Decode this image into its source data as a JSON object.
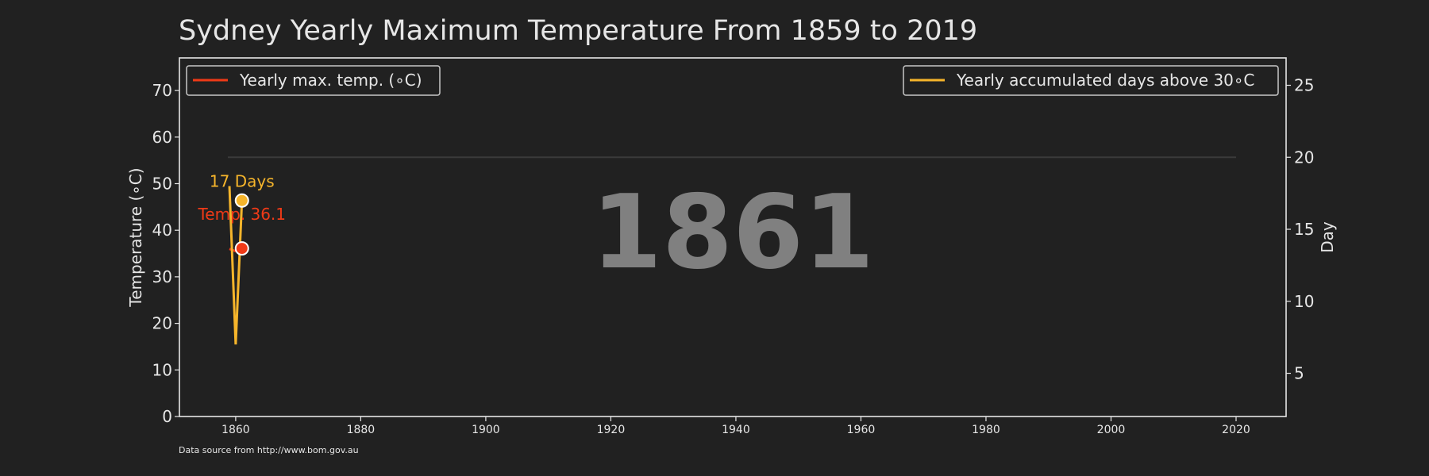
{
  "chart_data": {
    "type": "line",
    "title": "Sydney Yearly Maximum Temperature From 1859 to 2019",
    "source_note": "Data source from http://www.bom.gov.au",
    "big_year": "1861",
    "x": {
      "ticks": [
        1860,
        1880,
        1900,
        1920,
        1940,
        1960,
        1980,
        2000,
        2020
      ],
      "lim": [
        1851,
        2028
      ]
    },
    "y_left": {
      "label": "Temperature (∘C)",
      "ticks": [
        0,
        10,
        20,
        30,
        40,
        50,
        60,
        70
      ],
      "lim": [
        0,
        77
      ]
    },
    "y_right": {
      "label": "Day",
      "ticks": [
        5,
        10,
        15,
        20,
        25
      ],
      "lim": [
        2,
        26.9
      ]
    },
    "series": [
      {
        "name": "Yearly max. temp. (∘C)",
        "axis": "left",
        "color": "#f03a17",
        "x": [
          1859,
          1860,
          1861
        ],
        "y": [
          36.0,
          35.5,
          36.1
        ]
      },
      {
        "name": "Yearly accumulated days above 30∘C",
        "axis": "right",
        "color": "#f6b52b",
        "x": [
          1859,
          1860,
          1861
        ],
        "y": [
          18,
          7,
          17
        ]
      }
    ],
    "reference_line_days": 20,
    "annotations": {
      "days_label": "17 Days",
      "temp_label": "Temp. 36.1"
    },
    "legend": {
      "left": "top-left",
      "right": "top-right"
    },
    "grid": false
  }
}
